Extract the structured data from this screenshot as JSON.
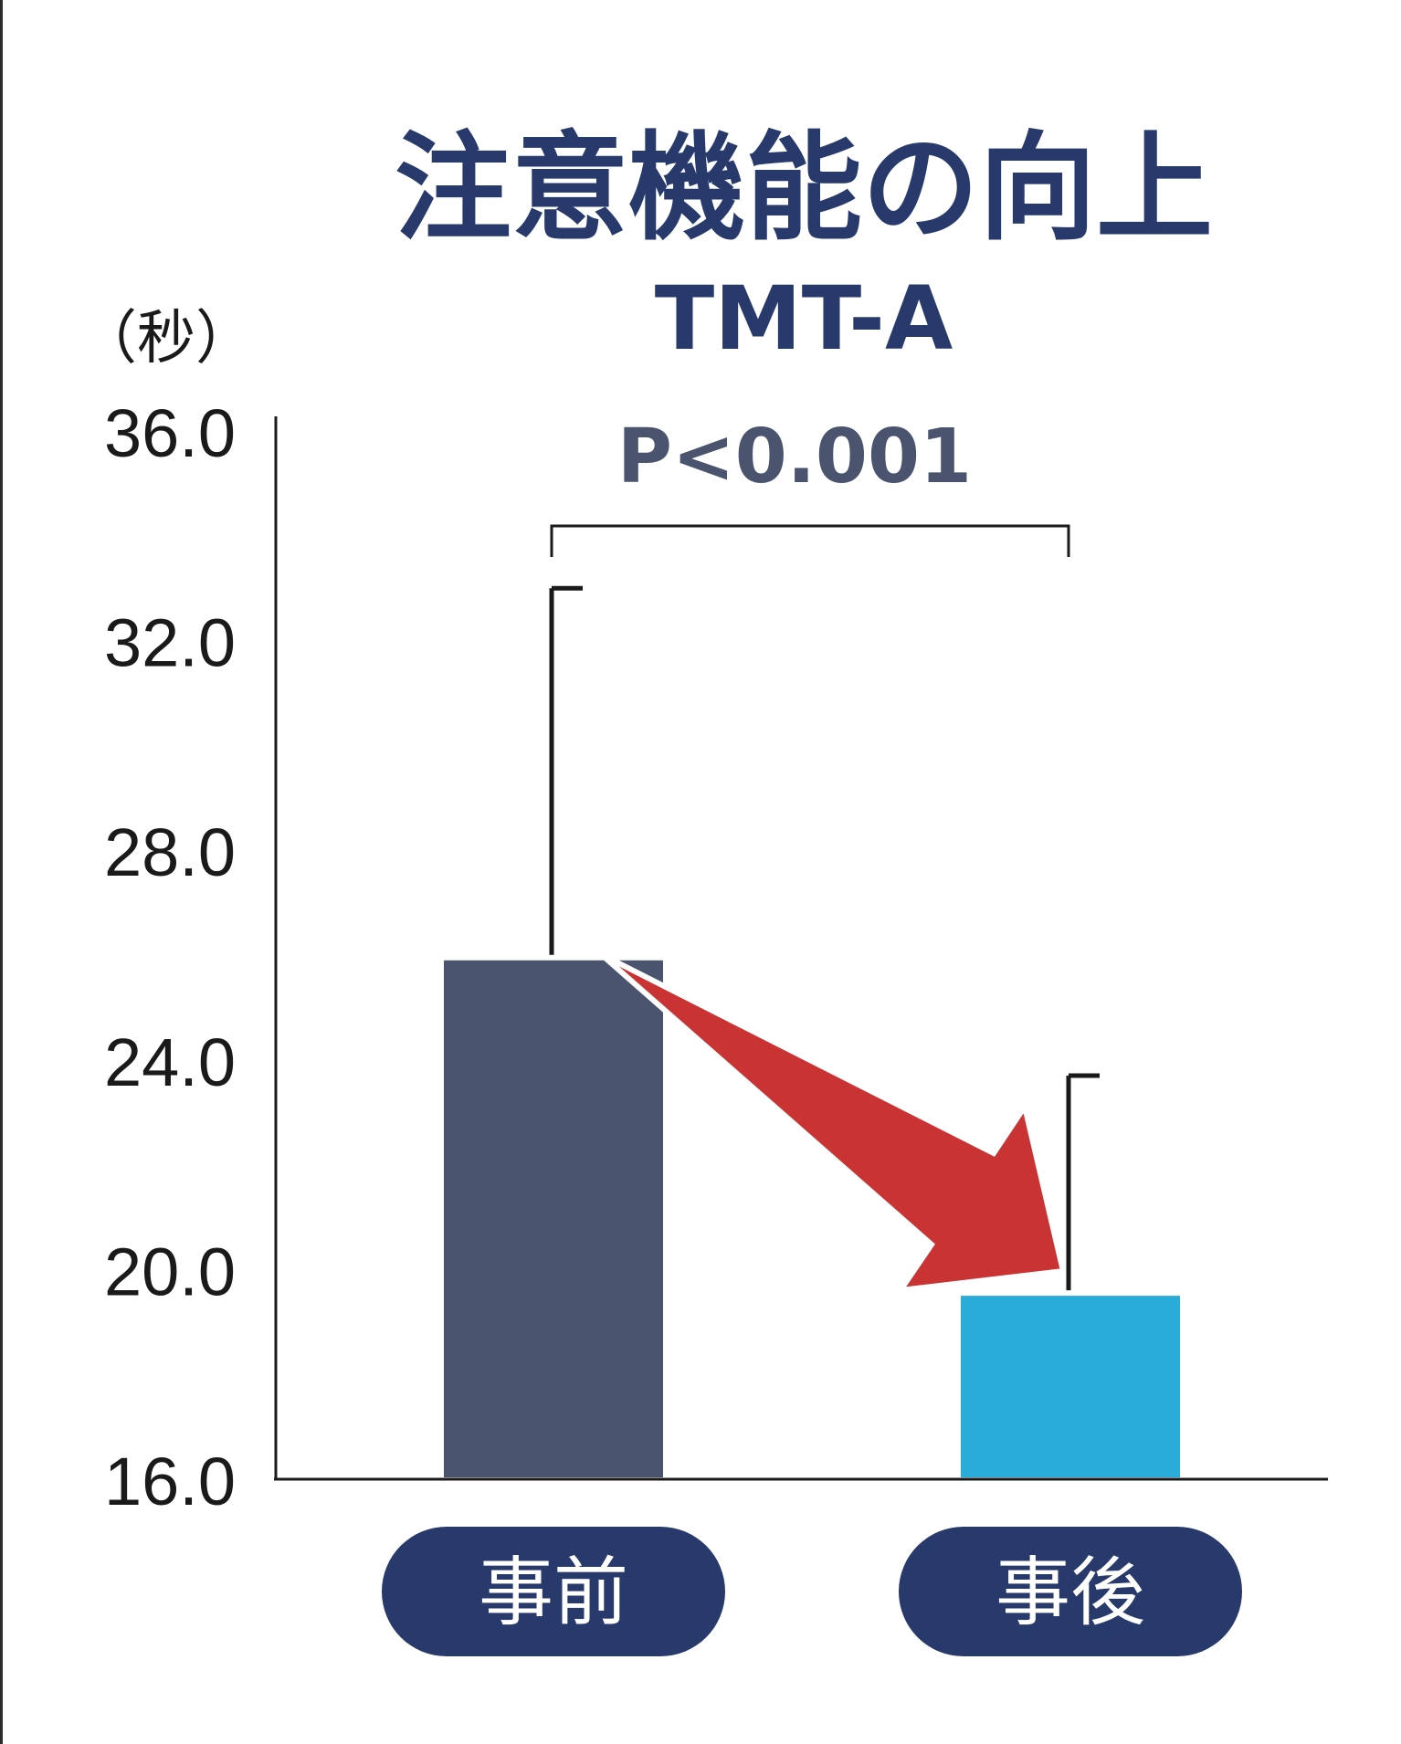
{
  "chart_data": {
    "type": "bar",
    "title": "注意機能の向上",
    "subtitle": "TMT-A",
    "ylabel": "（秒）",
    "ylim": [
      16,
      36
    ],
    "yticks": [
      "36.0",
      "32.0",
      "28.0",
      "24.0",
      "20.0",
      "16.0"
    ],
    "categories": [
      "事前",
      "事後"
    ],
    "values": [
      25.9,
      19.5
    ],
    "error_upper": [
      33.0,
      23.7
    ],
    "bar_colors": [
      "#4a546e",
      "#29acd9"
    ],
    "annotation": "P<0.001",
    "colors": {
      "title": "#283a6b",
      "annotation": "#4a546e",
      "arrow": "#c93333",
      "pill": "#283a6b",
      "axis": "#1a1a1a"
    }
  }
}
